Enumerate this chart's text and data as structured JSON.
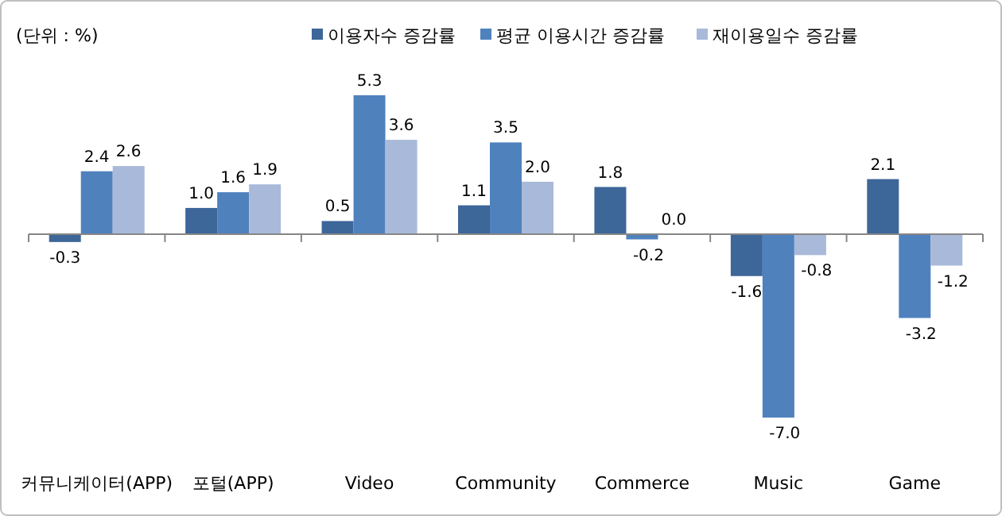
{
  "chart_data": {
    "type": "bar",
    "categories": [
      "커뮤니케이터(APP)",
      "포털(APP)",
      "Video",
      "Community",
      "Commerce",
      "Music",
      "Game"
    ],
    "series": [
      {
        "name": "이용자수 증감률",
        "color": "#3d6699",
        "values": [
          -0.3,
          1.0,
          0.5,
          1.1,
          1.8,
          -1.6,
          2.1
        ],
        "value_labels": [
          "-0.3",
          "1.0",
          "0.5",
          "1.1",
          "1.8",
          "-1.6",
          "2.1"
        ]
      },
      {
        "name": "평균 이용시간 증감률",
        "color": "#4f81bd",
        "values": [
          2.4,
          1.6,
          5.3,
          3.5,
          -0.2,
          -7.0,
          -3.2
        ],
        "value_labels": [
          "2.4",
          "1.6",
          "5.3",
          "3.5",
          "-0.2",
          "-7.0",
          "-3.2"
        ]
      },
      {
        "name": "재이용일수 증감률",
        "color": "#a9b9d9",
        "values": [
          2.6,
          1.9,
          3.6,
          2.0,
          0.0,
          -0.8,
          -1.2
        ],
        "value_labels": [
          "2.6",
          "1.9",
          "3.6",
          "2.0",
          "0.0",
          "-0.8",
          "-1.2"
        ]
      }
    ],
    "legend": "top",
    "annotations": [
      "(단위 : %)"
    ]
  }
}
